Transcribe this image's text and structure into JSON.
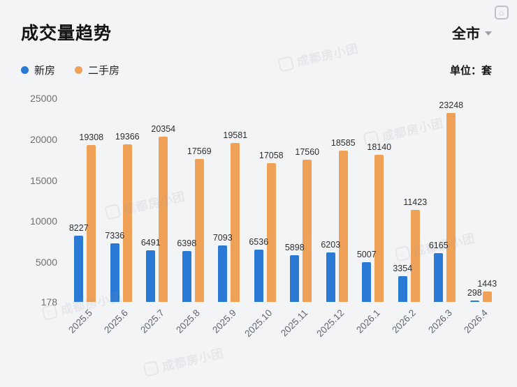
{
  "header": {
    "title": "成交量趋势",
    "region_selector": {
      "label": "全市"
    },
    "unit_label": "单位：套"
  },
  "legend": [
    {
      "label": "新房",
      "color": "#2a79d5"
    },
    {
      "label": "二手房",
      "color": "#f0a158"
    }
  ],
  "watermark": {
    "brand": "成都房小团",
    "logo_glyph": "⌂"
  },
  "chart_data": {
    "type": "bar",
    "title": "成交量趋势",
    "categories": [
      "2025.5",
      "2025.6",
      "2025.7",
      "2025.8",
      "2025.9",
      "2025.10",
      "2025.11",
      "2025.12",
      "2026.1",
      "2026.2",
      "2026.3",
      "2026.4"
    ],
    "series": [
      {
        "name": "新房",
        "color": "#2a79d5",
        "values": [
          8227,
          7336,
          6491,
          6398,
          7093,
          6536,
          5898,
          6203,
          5007,
          3354,
          6165,
          298
        ]
      },
      {
        "name": "二手房",
        "color": "#f0a158",
        "values": [
          19308,
          19366,
          20354,
          17569,
          19581,
          17058,
          17560,
          18585,
          18140,
          11423,
          23248,
          1443
        ]
      }
    ],
    "y_ticks": [
      25000,
      20000,
      15000,
      10000,
      5000,
      178
    ],
    "ylim": [
      178,
      25000
    ],
    "xlabel": "",
    "ylabel": "",
    "grid": false,
    "legend_position": "top-left",
    "data_labels": true
  }
}
